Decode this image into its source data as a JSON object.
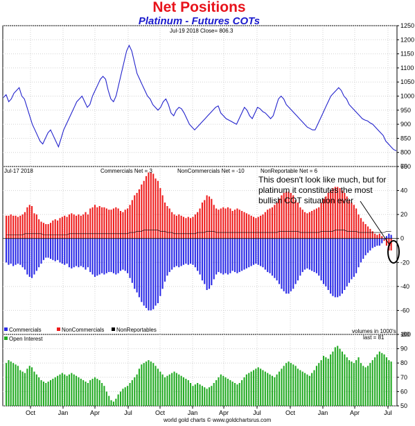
{
  "title": "Net Positions",
  "subtitle": "Platinum - Futures COTs",
  "footer": "world gold charts © www.goldchartsrus.com",
  "x_axis_labels": [
    "Oct",
    "Jan",
    "Apr",
    "Jul",
    "Oct",
    "Jan",
    "Apr",
    "Jul",
    "Oct",
    "Jan",
    "Apr",
    "Jul"
  ],
  "colors": {
    "price": "#2222cc",
    "commercials": "#2a2ae6",
    "noncommercials": "#ee1c1c",
    "nonreportables": "#000000",
    "open_interest": "#22aa22",
    "title": "#e8131b",
    "subtitle": "#1a1acc"
  },
  "chart_data": [
    {
      "type": "line",
      "panel": "price",
      "header": "Jul-19  2018   Close= 806.3",
      "ylim": [
        750,
        1250
      ],
      "yticks": [
        750,
        800,
        850,
        900,
        950,
        1000,
        1050,
        1100,
        1150,
        1200,
        1250
      ],
      "grid": true,
      "series": [
        {
          "values": [
            995,
            1005,
            980,
            990,
            1010,
            1020,
            1030,
            1000,
            990,
            960,
            930,
            900,
            880,
            860,
            840,
            830,
            850,
            870,
            880,
            860,
            840,
            820,
            850,
            880,
            900,
            920,
            940,
            960,
            980,
            990,
            1000,
            980,
            960,
            970,
            1000,
            1020,
            1040,
            1060,
            1070,
            1060,
            1020,
            990,
            980,
            1000,
            1040,
            1080,
            1120,
            1160,
            1180,
            1160,
            1120,
            1080,
            1060,
            1040,
            1020,
            1000,
            990,
            970,
            960,
            950,
            960,
            980,
            990,
            970,
            940,
            930,
            950,
            960,
            955,
            940,
            920,
            900,
            890,
            880,
            890,
            900,
            910,
            920,
            930,
            940,
            950,
            960,
            965,
            940,
            930,
            920,
            915,
            910,
            905,
            900,
            920,
            940,
            960,
            950,
            930,
            920,
            940,
            960,
            955,
            945,
            940,
            930,
            920,
            930,
            960,
            990,
            1000,
            990,
            970,
            960,
            950,
            940,
            930,
            920,
            910,
            900,
            890,
            885,
            880,
            880,
            900,
            920,
            940,
            960,
            980,
            1000,
            1010,
            1020,
            1030,
            1020,
            1000,
            990,
            970,
            960,
            950,
            940,
            930,
            920,
            915,
            912,
            905,
            900,
            890,
            880,
            870,
            860,
            840,
            830,
            820,
            810,
            806
          ]
        }
      ]
    },
    {
      "type": "bar",
      "panel": "net-positions",
      "header": "Jul-17  2018",
      "ylim": [
        -80,
        60
      ],
      "yticks": [
        -80,
        -60,
        -40,
        -20,
        0,
        20,
        40,
        60
      ],
      "grid": true,
      "legend": "bottom",
      "legend_labels": [
        "Commercials",
        "NonCommercials",
        "NonReportables"
      ],
      "readouts": [
        {
          "label": "Commercials Net = 3",
          "value": 3
        },
        {
          "label": "NonCommercials Net = -10",
          "value": -10
        },
        {
          "label": "NonReportable Net = 6",
          "value": 6
        }
      ],
      "units_note": "volumes in 1000's",
      "annotation": [
        "This doesn't look like much, but for",
        "platinum it constitutes the most",
        "bullish COT situation ever"
      ],
      "series": [
        {
          "name": "NonCommercials",
          "values": [
            19,
            19,
            20,
            19,
            19,
            18,
            19,
            20,
            22,
            26,
            28,
            27,
            21,
            20,
            16,
            14,
            13,
            12,
            12,
            13,
            15,
            16,
            15,
            17,
            18,
            19,
            18,
            20,
            21,
            20,
            19,
            20,
            19,
            20,
            22,
            20,
            25,
            26,
            28,
            26,
            27,
            26,
            26,
            25,
            24,
            24,
            25,
            26,
            25,
            23,
            22,
            24,
            25,
            28,
            32,
            36,
            38,
            41,
            45,
            48,
            52,
            55,
            55,
            54,
            50,
            48,
            42,
            36,
            30,
            27,
            25,
            22,
            20,
            19,
            20,
            19,
            18,
            17,
            18,
            17,
            18,
            20,
            22,
            25,
            30,
            32,
            36,
            35,
            33,
            28,
            25,
            24,
            25,
            26,
            25,
            26,
            25,
            23,
            24,
            25,
            24,
            23,
            22,
            21,
            20,
            19,
            18,
            17,
            18,
            19,
            20,
            22,
            24,
            25,
            26,
            28,
            30,
            33,
            36,
            38,
            39,
            39,
            38,
            36,
            32,
            30,
            26,
            24,
            22,
            21,
            22,
            23,
            24,
            25,
            26,
            30,
            33,
            35,
            38,
            40,
            42,
            43,
            43,
            42,
            40,
            38,
            35,
            32,
            30,
            28,
            25,
            20,
            17,
            14,
            12,
            10,
            8,
            6,
            4,
            3,
            4,
            2,
            -2,
            -6,
            -10,
            -10
          ]
        },
        {
          "name": "Commercials",
          "values": [
            -20,
            -22,
            -21,
            -23,
            -22,
            -21,
            -22,
            -24,
            -26,
            -30,
            -32,
            -33,
            -30,
            -27,
            -24,
            -21,
            -18,
            -16,
            -16,
            -17,
            -18,
            -19,
            -18,
            -20,
            -21,
            -22,
            -21,
            -24,
            -25,
            -24,
            -23,
            -24,
            -23,
            -24,
            -26,
            -24,
            -28,
            -30,
            -32,
            -31,
            -30,
            -29,
            -30,
            -29,
            -28,
            -28,
            -29,
            -30,
            -29,
            -27,
            -26,
            -27,
            -29,
            -33,
            -37,
            -42,
            -45,
            -49,
            -53,
            -56,
            -58,
            -60,
            -60,
            -59,
            -56,
            -54,
            -48,
            -42,
            -36,
            -31,
            -28,
            -26,
            -24,
            -23,
            -24,
            -23,
            -22,
            -21,
            -22,
            -21,
            -22,
            -24,
            -27,
            -30,
            -35,
            -38,
            -43,
            -42,
            -39,
            -34,
            -30,
            -28,
            -29,
            -30,
            -29,
            -30,
            -29,
            -27,
            -28,
            -29,
            -28,
            -27,
            -26,
            -25,
            -24,
            -23,
            -22,
            -21,
            -22,
            -23,
            -24,
            -26,
            -28,
            -29,
            -31,
            -33,
            -35,
            -38,
            -42,
            -44,
            -46,
            -46,
            -44,
            -42,
            -38,
            -35,
            -31,
            -28,
            -26,
            -25,
            -26,
            -27,
            -28,
            -29,
            -31,
            -35,
            -38,
            -40,
            -43,
            -46,
            -48,
            -49,
            -49,
            -48,
            -46,
            -43,
            -40,
            -37,
            -34,
            -32,
            -29,
            -24,
            -20,
            -17,
            -14,
            -12,
            -10,
            -8,
            -7,
            -6,
            -6,
            -4,
            -1,
            2,
            4,
            3
          ]
        },
        {
          "name": "NonReportables",
          "values": [
            3,
            3,
            3,
            3,
            3,
            3,
            3,
            3,
            4,
            4,
            4,
            4,
            4,
            4,
            4,
            4,
            3,
            3,
            3,
            3,
            3,
            3,
            3,
            3,
            3,
            3,
            3,
            4,
            4,
            4,
            4,
            4,
            4,
            4,
            4,
            4,
            4,
            4,
            4,
            4,
            4,
            4,
            4,
            4,
            4,
            4,
            4,
            4,
            4,
            4,
            4,
            4,
            4,
            5,
            5,
            5,
            6,
            6,
            6,
            7,
            7,
            7,
            7,
            7,
            7,
            7,
            6,
            6,
            6,
            5,
            5,
            5,
            4,
            4,
            4,
            4,
            4,
            4,
            4,
            4,
            4,
            4,
            5,
            5,
            5,
            5,
            6,
            6,
            6,
            6,
            5,
            5,
            5,
            5,
            5,
            5,
            5,
            5,
            5,
            5,
            5,
            5,
            5,
            5,
            5,
            5,
            5,
            5,
            5,
            5,
            5,
            5,
            5,
            5,
            5,
            5,
            5,
            6,
            6,
            6,
            6,
            6,
            6,
            6,
            6,
            6,
            5,
            5,
            5,
            5,
            5,
            5,
            5,
            5,
            5,
            6,
            6,
            6,
            6,
            6,
            6,
            7,
            7,
            7,
            7,
            7,
            6,
            6,
            6,
            6,
            6,
            5,
            5,
            5,
            5,
            5,
            5,
            5,
            5,
            5,
            5,
            5,
            5,
            6,
            6,
            6
          ]
        }
      ]
    },
    {
      "type": "bar",
      "panel": "open-interest",
      "legend_labels": [
        "Open Interest"
      ],
      "readout": "last = 81",
      "ylim": [
        50,
        100
      ],
      "yticks": [
        50,
        60,
        70,
        80,
        90,
        100
      ],
      "grid": true,
      "series": [
        {
          "name": "Open Interest",
          "values": [
            80,
            82,
            81,
            80,
            79,
            78,
            75,
            74,
            73,
            76,
            78,
            77,
            74,
            72,
            70,
            68,
            67,
            66,
            67,
            68,
            69,
            70,
            71,
            72,
            73,
            72,
            71,
            72,
            73,
            72,
            71,
            70,
            69,
            68,
            67,
            66,
            68,
            69,
            70,
            69,
            68,
            66,
            64,
            60,
            57,
            54,
            53,
            55,
            58,
            60,
            62,
            63,
            64,
            66,
            68,
            70,
            72,
            76,
            79,
            80,
            81,
            82,
            81,
            80,
            78,
            76,
            74,
            72,
            70,
            71,
            72,
            73,
            74,
            73,
            72,
            71,
            70,
            69,
            68,
            66,
            64,
            65,
            66,
            65,
            64,
            63,
            62,
            63,
            64,
            66,
            68,
            70,
            72,
            71,
            70,
            69,
            68,
            67,
            66,
            65,
            66,
            68,
            70,
            72,
            73,
            74,
            75,
            76,
            77,
            76,
            75,
            74,
            73,
            72,
            71,
            70,
            72,
            74,
            76,
            78,
            80,
            81,
            80,
            79,
            78,
            76,
            75,
            74,
            73,
            72,
            71,
            73,
            75,
            78,
            80,
            82,
            85,
            84,
            83,
            86,
            88,
            91,
            92,
            90,
            88,
            86,
            84,
            82,
            81,
            80,
            82,
            84,
            80,
            78,
            77,
            78,
            80,
            82,
            84,
            86,
            88,
            87,
            86,
            84,
            82,
            81
          ]
        }
      ]
    }
  ]
}
